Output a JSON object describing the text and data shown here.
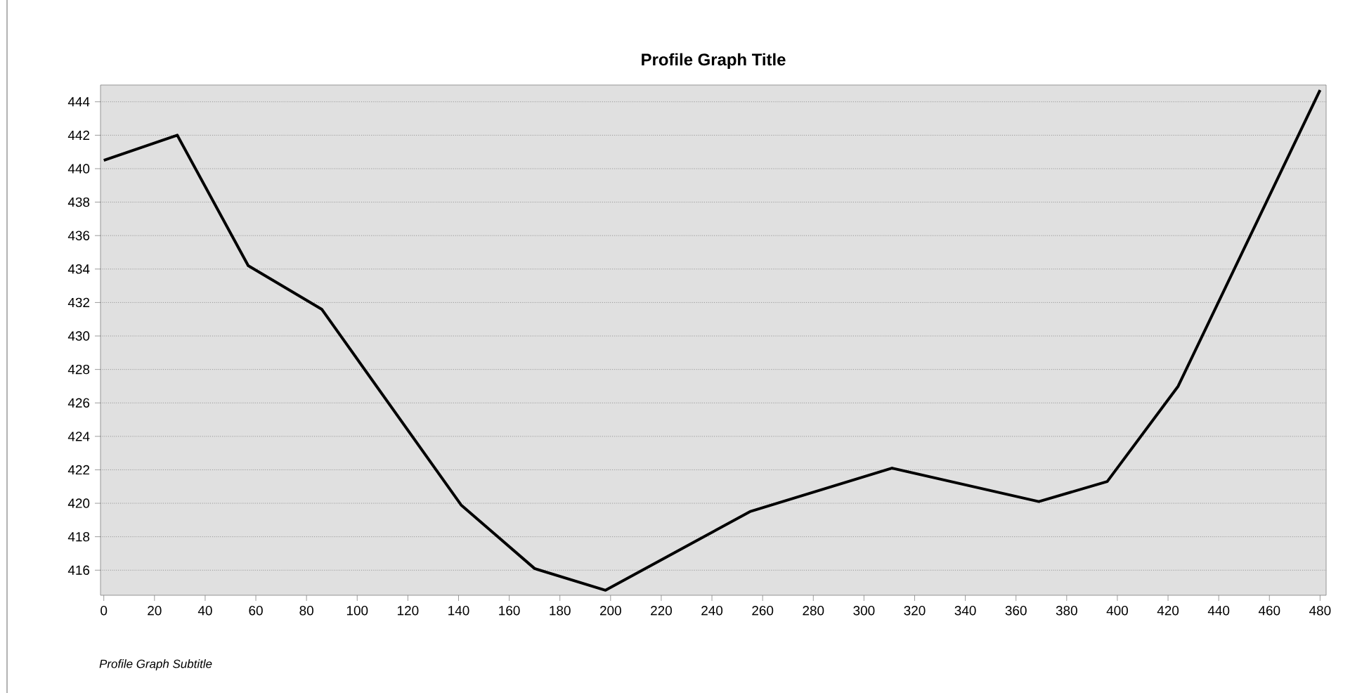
{
  "chart_data": {
    "type": "line",
    "title": "Profile Graph Title",
    "annotations": [
      "Profile Graph Subtitle"
    ],
    "x": [
      0,
      29,
      57,
      86,
      141,
      170,
      198,
      255,
      311,
      369,
      396,
      424,
      480
    ],
    "series": [
      {
        "color": "#000000",
        "values": [
          440.5,
          442,
          434.2,
          431.6,
          419.9,
          416.1,
          414.8,
          419.5,
          422.1,
          420.1,
          421.3,
          427,
          444.7
        ]
      }
    ],
    "xlim": [
      -1.3,
      482.4
    ],
    "ylim": [
      414.5,
      445
    ],
    "xticks": [
      0,
      20,
      40,
      60,
      80,
      100,
      120,
      140,
      160,
      180,
      200,
      220,
      240,
      260,
      280,
      300,
      320,
      340,
      360,
      380,
      400,
      420,
      440,
      460,
      480
    ],
    "yticks": [
      416,
      418,
      420,
      422,
      424,
      426,
      428,
      430,
      432,
      434,
      436,
      438,
      440,
      442,
      444
    ],
    "grid": "y",
    "marker": "none",
    "line_style": "solid"
  }
}
